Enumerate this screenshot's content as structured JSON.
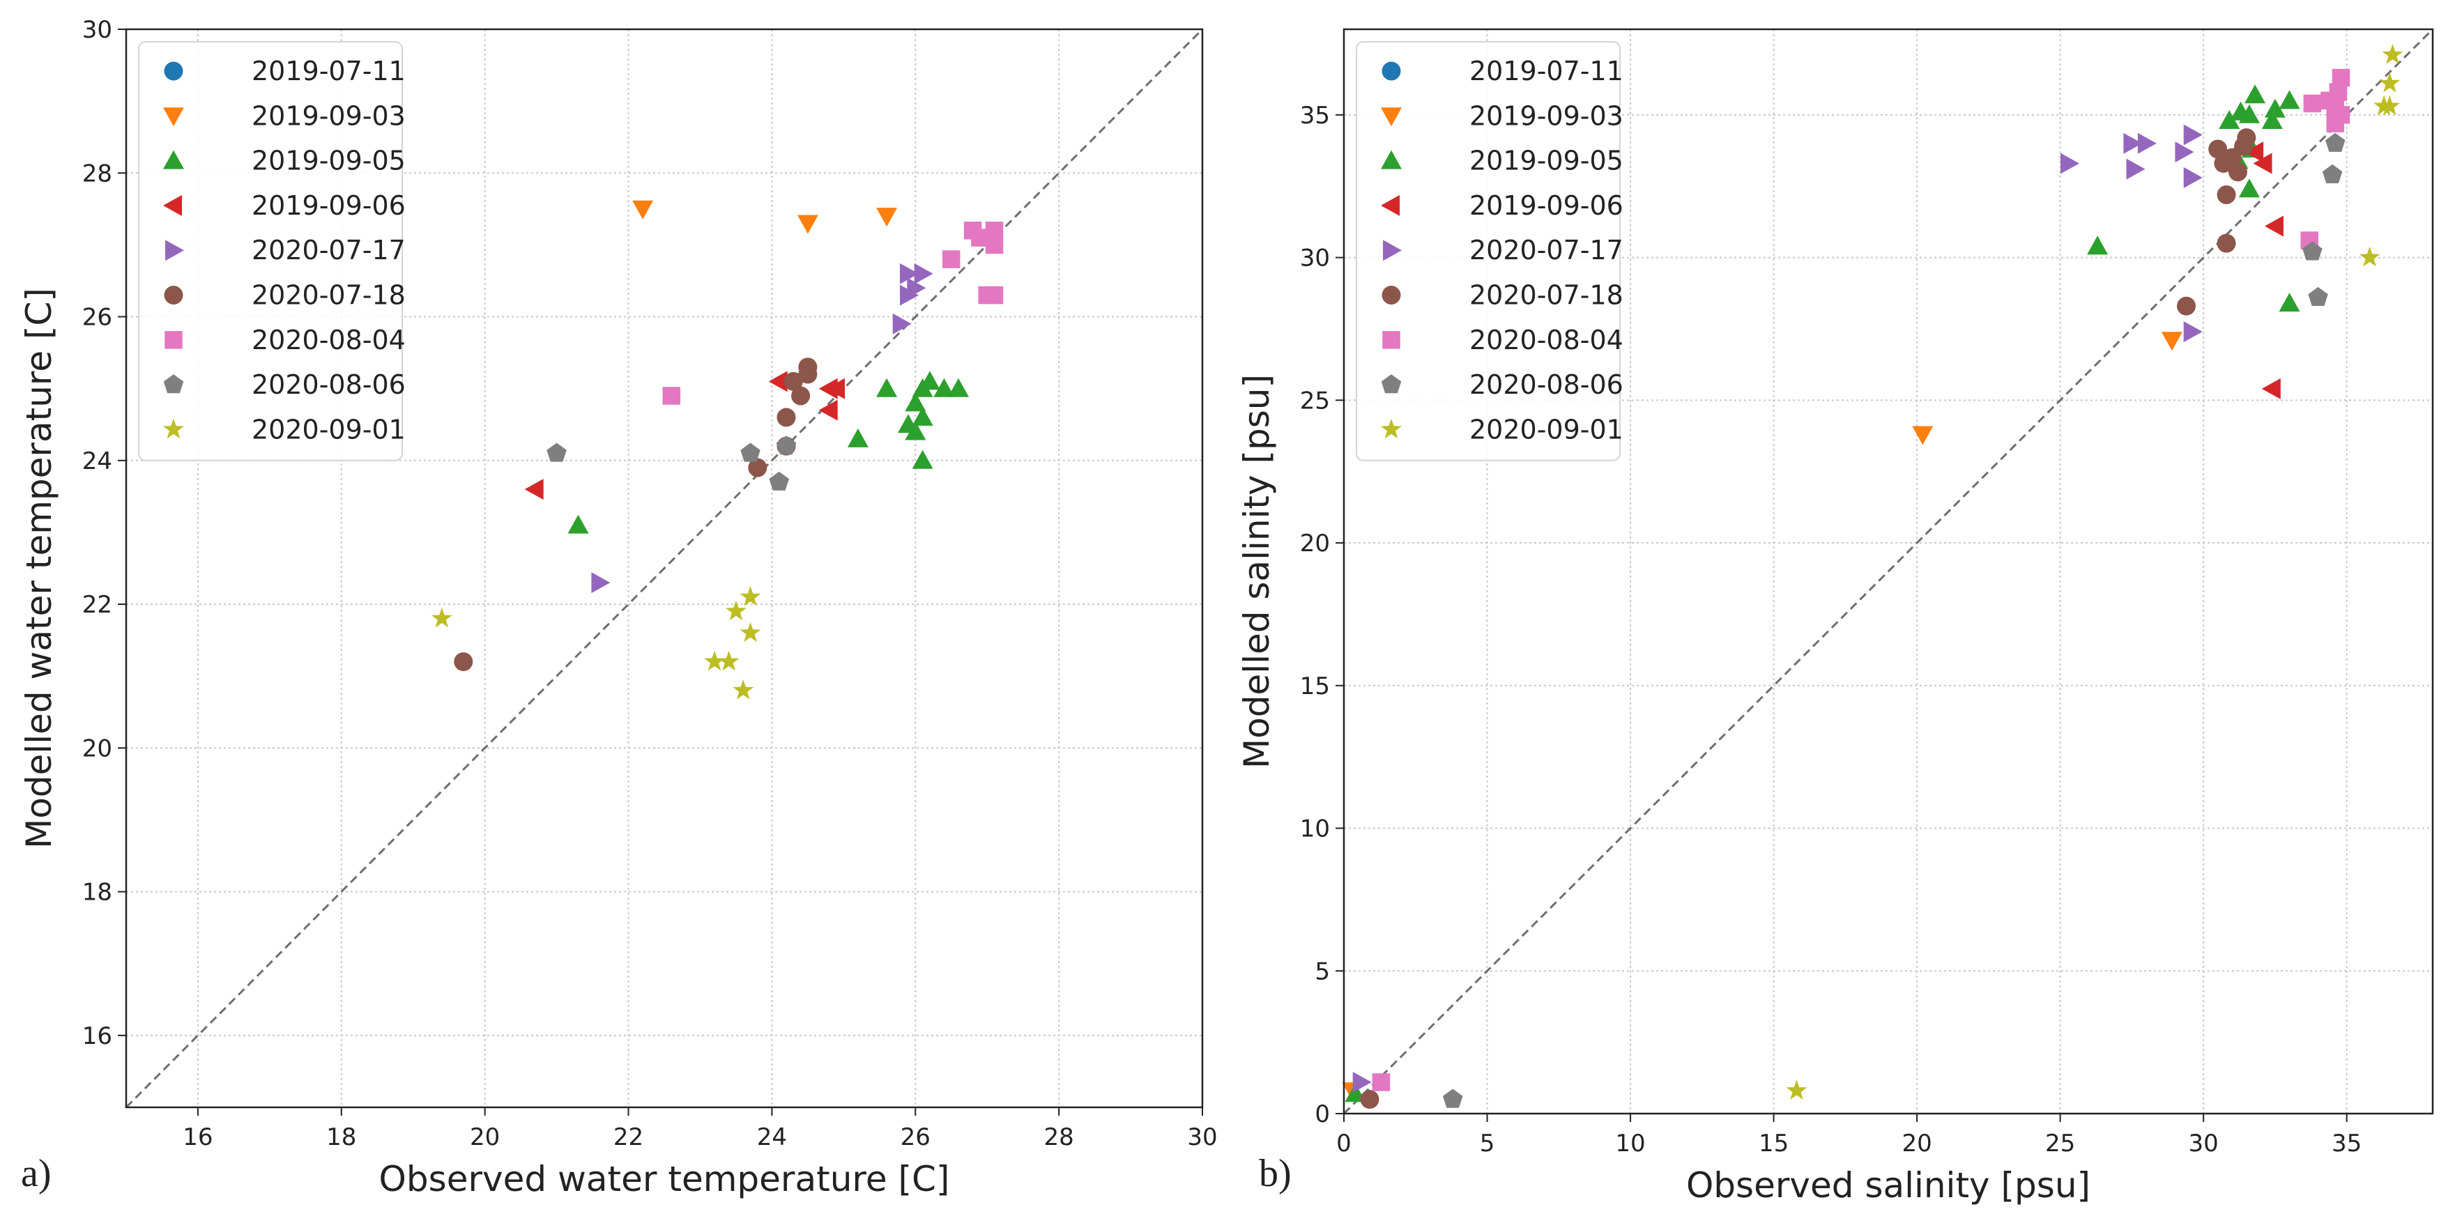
{
  "chart_data": [
    {
      "type": "scatter",
      "panel_label": "a)",
      "xlabel": "Observed water temperature [C]",
      "ylabel": "Modelled water temperature [C]",
      "xlim": [
        15,
        30
      ],
      "ylim": [
        15,
        30
      ],
      "xticks": [
        "16",
        "18",
        "20",
        "22",
        "24",
        "26",
        "28",
        "30"
      ],
      "yticks": [
        "16",
        "18",
        "20",
        "22",
        "24",
        "26",
        "28",
        "30"
      ],
      "grid": true,
      "identity_line": true,
      "legend_position": "upper-left",
      "series": [
        {
          "name": "2019-07-11",
          "color": "#1f77b4",
          "marker": "circle",
          "points": []
        },
        {
          "name": "2019-09-03",
          "color": "#ff7f0e",
          "marker": "triangle-down",
          "points": [
            [
              22.2,
              27.5
            ],
            [
              24.5,
              27.3
            ],
            [
              25.6,
              27.4
            ]
          ]
        },
        {
          "name": "2019-09-05",
          "color": "#2ca02c",
          "marker": "triangle-up",
          "points": [
            [
              21.3,
              23.1
            ],
            [
              25.2,
              24.3
            ],
            [
              25.6,
              25.0
            ],
            [
              25.9,
              24.5
            ],
            [
              26.0,
              24.4
            ],
            [
              26.0,
              24.8
            ],
            [
              26.1,
              25.0
            ],
            [
              26.1,
              24.6
            ],
            [
              26.1,
              24.0
            ],
            [
              26.2,
              25.1
            ],
            [
              26.4,
              25.0
            ],
            [
              26.6,
              25.0
            ]
          ]
        },
        {
          "name": "2019-09-06",
          "color": "#d62728",
          "marker": "triangle-left",
          "points": [
            [
              20.7,
              23.6
            ],
            [
              24.1,
              25.1
            ],
            [
              24.8,
              25.0
            ],
            [
              24.8,
              24.7
            ],
            [
              24.9,
              25.0
            ]
          ]
        },
        {
          "name": "2020-07-17",
          "color": "#9467bd",
          "marker": "triangle-right",
          "points": [
            [
              21.6,
              22.3
            ],
            [
              25.8,
              25.9
            ],
            [
              25.9,
              26.3
            ],
            [
              25.9,
              26.6
            ],
            [
              26.0,
              26.4
            ],
            [
              26.1,
              26.6
            ]
          ]
        },
        {
          "name": "2020-07-18",
          "color": "#8c564b",
          "marker": "circle",
          "points": [
            [
              19.7,
              21.2
            ],
            [
              23.8,
              23.9
            ],
            [
              24.2,
              24.2
            ],
            [
              24.2,
              24.6
            ],
            [
              24.3,
              25.1
            ],
            [
              24.4,
              24.9
            ],
            [
              24.5,
              25.2
            ],
            [
              24.5,
              25.3
            ]
          ]
        },
        {
          "name": "2020-08-04",
          "color": "#e377c2",
          "marker": "square",
          "points": [
            [
              22.6,
              24.9
            ],
            [
              26.5,
              26.8
            ],
            [
              26.8,
              27.2
            ],
            [
              26.9,
              27.1
            ],
            [
              27.0,
              26.3
            ],
            [
              27.1,
              26.3
            ],
            [
              27.1,
              27.0
            ],
            [
              27.1,
              27.2
            ]
          ]
        },
        {
          "name": "2020-08-06",
          "color": "#7f7f7f",
          "marker": "pentagon",
          "points": [
            [
              21.0,
              24.1
            ],
            [
              23.7,
              24.1
            ],
            [
              24.1,
              23.7
            ],
            [
              24.2,
              24.2
            ]
          ]
        },
        {
          "name": "2020-09-01",
          "color": "#bcbd22",
          "marker": "star",
          "points": [
            [
              19.4,
              21.8
            ],
            [
              23.2,
              21.2
            ],
            [
              23.4,
              21.2
            ],
            [
              23.5,
              21.9
            ],
            [
              23.6,
              20.8
            ],
            [
              23.7,
              22.1
            ],
            [
              23.7,
              21.6
            ]
          ]
        }
      ]
    },
    {
      "type": "scatter",
      "panel_label": "b)",
      "xlabel": "Observed salinity [psu]",
      "ylabel": "Modelled salinity [psu]",
      "xlim": [
        0,
        38
      ],
      "ylim": [
        0,
        38
      ],
      "xticks": [
        "0",
        "5",
        "10",
        "15",
        "20",
        "25",
        "30",
        "35"
      ],
      "yticks": [
        "0",
        "5",
        "10",
        "15",
        "20",
        "25",
        "30",
        "35"
      ],
      "grid": true,
      "identity_line": true,
      "legend_position": "upper-left",
      "series": [
        {
          "name": "2019-07-11",
          "color": "#1f77b4",
          "marker": "circle",
          "points": []
        },
        {
          "name": "2019-09-03",
          "color": "#ff7f0e",
          "marker": "triangle-down",
          "points": [
            [
              0.3,
              0.8
            ],
            [
              20.2,
              23.8
            ],
            [
              28.9,
              27.1
            ]
          ]
        },
        {
          "name": "2019-09-05",
          "color": "#2ca02c",
          "marker": "triangle-up",
          "points": [
            [
              0.4,
              0.7
            ],
            [
              26.3,
              30.4
            ],
            [
              30.9,
              34.8
            ],
            [
              31.2,
              33.4
            ],
            [
              31.3,
              35.1
            ],
            [
              31.4,
              34.1
            ],
            [
              31.6,
              32.4
            ],
            [
              31.6,
              35.0
            ],
            [
              31.7,
              33.8
            ],
            [
              31.8,
              35.7
            ],
            [
              32.4,
              34.8
            ],
            [
              32.5,
              35.2
            ],
            [
              33.0,
              35.5
            ],
            [
              33.0,
              28.4
            ]
          ]
        },
        {
          "name": "2019-09-06",
          "color": "#d62728",
          "marker": "triangle-left",
          "points": [
            [
              31.8,
              33.7
            ],
            [
              32.1,
              33.3
            ],
            [
              32.4,
              25.4
            ],
            [
              32.5,
              31.1
            ]
          ]
        },
        {
          "name": "2020-07-17",
          "color": "#9467bd",
          "marker": "triangle-right",
          "points": [
            [
              0.6,
              1.1
            ],
            [
              25.3,
              33.3
            ],
            [
              27.5,
              34.0
            ],
            [
              27.6,
              33.1
            ],
            [
              28.0,
              34.0
            ],
            [
              29.3,
              33.7
            ],
            [
              29.6,
              34.3
            ],
            [
              29.6,
              32.8
            ],
            [
              29.6,
              27.4
            ]
          ]
        },
        {
          "name": "2020-07-18",
          "color": "#8c564b",
          "marker": "circle",
          "points": [
            [
              0.9,
              0.5
            ],
            [
              29.4,
              28.3
            ],
            [
              30.5,
              33.8
            ],
            [
              30.7,
              33.3
            ],
            [
              30.8,
              32.2
            ],
            [
              30.8,
              30.5
            ],
            [
              31.0,
              33.5
            ],
            [
              31.2,
              33.0
            ],
            [
              31.4,
              33.9
            ],
            [
              31.5,
              34.2
            ]
          ]
        },
        {
          "name": "2020-08-04",
          "color": "#e377c2",
          "marker": "square",
          "points": [
            [
              1.3,
              1.1
            ],
            [
              33.7,
              30.6
            ],
            [
              33.8,
              35.4
            ],
            [
              34.4,
              35.5
            ],
            [
              34.6,
              34.7
            ],
            [
              34.6,
              35.2
            ],
            [
              34.7,
              35.8
            ],
            [
              34.8,
              36.3
            ],
            [
              34.8,
              35.0
            ]
          ]
        },
        {
          "name": "2020-08-06",
          "color": "#7f7f7f",
          "marker": "pentagon",
          "points": [
            [
              3.8,
              0.5
            ],
            [
              33.8,
              30.2
            ],
            [
              34.0,
              28.6
            ],
            [
              34.5,
              32.9
            ],
            [
              34.6,
              34.0
            ]
          ]
        },
        {
          "name": "2020-09-01",
          "color": "#bcbd22",
          "marker": "star",
          "points": [
            [
              15.8,
              0.8
            ],
            [
              35.8,
              30.0
            ],
            [
              36.3,
              35.3
            ],
            [
              36.5,
              35.3
            ],
            [
              36.5,
              36.1
            ],
            [
              36.6,
              37.1
            ]
          ]
        }
      ]
    }
  ]
}
